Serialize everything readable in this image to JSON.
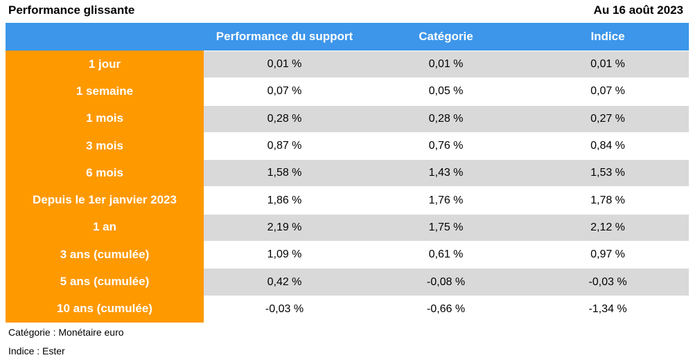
{
  "header": {
    "title": "Performance glissante",
    "date": "Au 16 août 2023"
  },
  "columns": [
    "",
    "Performance du support",
    "Catégorie",
    "Indice"
  ],
  "rows": [
    {
      "label": "1 jour",
      "support": "0,01 %",
      "categorie": "0,01 %",
      "indice": "0,01 %"
    },
    {
      "label": "1 semaine",
      "support": "0,07 %",
      "categorie": "0,05 %",
      "indice": "0,07 %"
    },
    {
      "label": "1 mois",
      "support": "0,28 %",
      "categorie": "0,28 %",
      "indice": "0,27 %"
    },
    {
      "label": "3 mois",
      "support": "0,87 %",
      "categorie": "0,76 %",
      "indice": "0,84 %"
    },
    {
      "label": "6 mois",
      "support": "1,58 %",
      "categorie": "1,43 %",
      "indice": "1,53 %"
    },
    {
      "label": "Depuis le 1er janvier 2023",
      "support": "1,86 %",
      "categorie": "1,76 %",
      "indice": "1,78 %"
    },
    {
      "label": "1 an",
      "support": "2,19 %",
      "categorie": "1,75 %",
      "indice": "2,12 %"
    },
    {
      "label": "3 ans (cumulée)",
      "support": "1,09 %",
      "categorie": "0,61 %",
      "indice": "0,97 %"
    },
    {
      "label": "5 ans (cumulée)",
      "support": "0,42 %",
      "categorie": "-0,08 %",
      "indice": "-0,03 %"
    },
    {
      "label": "10 ans (cumulée)",
      "support": "-0,03 %",
      "categorie": "-0,66 %",
      "indice": "-1,34 %"
    }
  ],
  "footer": {
    "categorie_note": "Catégorie : Monétaire euro",
    "indice_note": "Indice : Ester"
  },
  "colors": {
    "header_bg": "#3d96ea",
    "label_bg": "#ff9900",
    "stripe_bg": "#d9d9d9"
  }
}
